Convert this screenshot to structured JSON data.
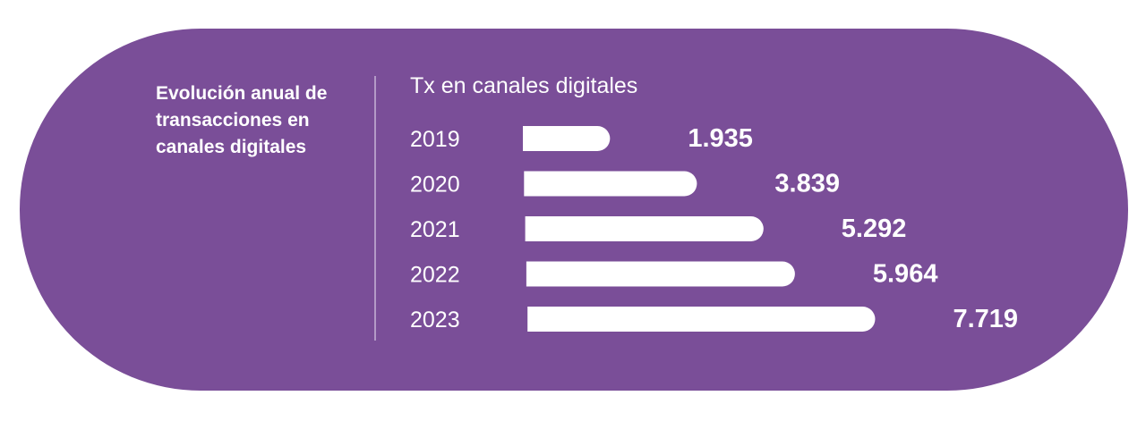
{
  "colors": {
    "background": "#ffffff",
    "panel": "#7a4e98",
    "bar": "#ffffff",
    "text": "#ffffff",
    "divider": "#b49ac7"
  },
  "panel": {
    "title": "Evolución anual de transacciones en canales digitales"
  },
  "chart_data": {
    "type": "bar",
    "orientation": "horizontal",
    "title": "Tx en canales digitales",
    "categories": [
      "2019",
      "2020",
      "2021",
      "2022",
      "2023"
    ],
    "values": [
      1935,
      3839,
      5292,
      5964,
      7719
    ],
    "value_labels": [
      "1.935",
      "3.839",
      "5.292",
      "5.964",
      "7.719"
    ],
    "xlabel": "",
    "ylabel": "",
    "grid": false,
    "legend": "none"
  }
}
